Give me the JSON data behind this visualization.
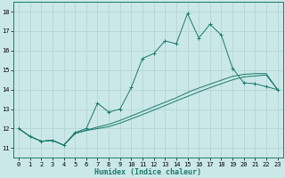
{
  "xlabel": "Humidex (Indice chaleur)",
  "xlim": [
    -0.5,
    23.5
  ],
  "ylim": [
    10.5,
    18.5
  ],
  "yticks": [
    11,
    12,
    13,
    14,
    15,
    16,
    17,
    18
  ],
  "xticks": [
    0,
    1,
    2,
    3,
    4,
    5,
    6,
    7,
    8,
    9,
    10,
    11,
    12,
    13,
    14,
    15,
    16,
    17,
    18,
    19,
    20,
    21,
    22,
    23
  ],
  "bg_color": "#cbe8e8",
  "grid_color": "#b0d0d0",
  "line_color": "#1a7a6a",
  "line1_x": [
    0,
    1,
    2,
    3,
    4,
    5,
    6,
    7,
    8,
    9,
    10,
    11,
    12,
    13,
    14,
    15,
    16,
    17,
    18,
    19,
    20,
    21,
    22,
    23
  ],
  "line1_y": [
    12.0,
    11.6,
    11.35,
    11.4,
    11.15,
    11.8,
    12.0,
    13.3,
    12.85,
    13.0,
    14.1,
    15.6,
    15.85,
    16.5,
    16.35,
    17.9,
    16.65,
    17.35,
    16.8,
    15.1,
    14.35,
    14.3,
    14.15,
    14.0
  ],
  "line2_x": [
    0,
    1,
    2,
    3,
    4,
    5,
    6,
    7,
    8,
    9,
    10,
    11,
    12,
    13,
    14,
    15,
    16,
    17,
    18,
    19,
    20,
    21,
    22,
    23
  ],
  "line2_y": [
    12.0,
    11.6,
    11.35,
    11.4,
    11.15,
    11.75,
    11.9,
    12.0,
    12.1,
    12.28,
    12.5,
    12.72,
    12.95,
    13.18,
    13.42,
    13.65,
    13.88,
    14.1,
    14.3,
    14.5,
    14.65,
    14.7,
    14.75,
    14.0
  ],
  "line3_x": [
    0,
    1,
    2,
    3,
    4,
    5,
    6,
    7,
    8,
    9,
    10,
    11,
    12,
    13,
    14,
    15,
    16,
    17,
    18,
    19,
    20,
    21,
    22,
    23
  ],
  "line3_y": [
    12.0,
    11.6,
    11.35,
    11.4,
    11.15,
    11.75,
    11.92,
    12.08,
    12.22,
    12.42,
    12.65,
    12.88,
    13.12,
    13.35,
    13.58,
    13.85,
    14.08,
    14.28,
    14.48,
    14.68,
    14.78,
    14.82,
    14.82,
    14.0
  ]
}
